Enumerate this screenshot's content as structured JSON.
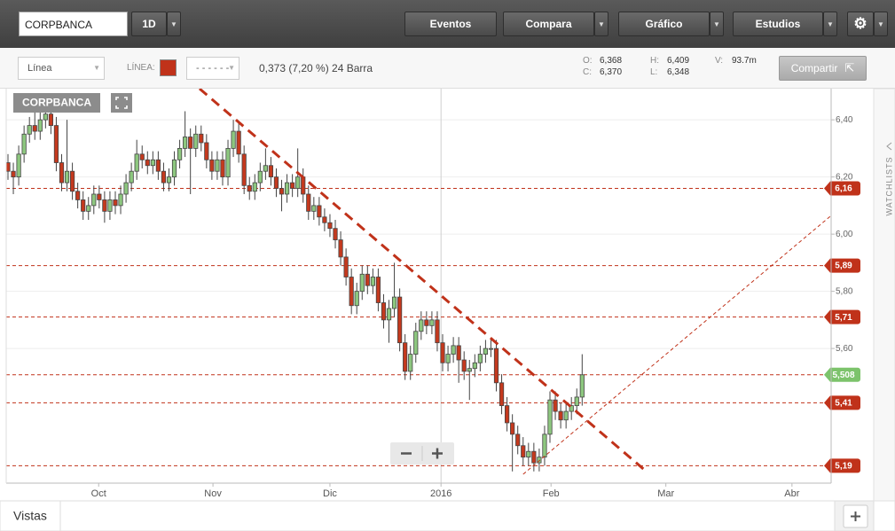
{
  "toolbar": {
    "symbol": "CORPBANCA",
    "interval": "1D",
    "buttons": [
      "Eventos",
      "Compara",
      "Gráfico",
      "Estudios"
    ]
  },
  "subbar": {
    "chart_style": "Línea",
    "line_label": "LÍNEA:",
    "change": "0,373 (7,20 %) 24 Barra",
    "ohlc": [
      [
        "O:",
        "6,368"
      ],
      [
        "C:",
        "6,370"
      ],
      [
        "H:",
        "6,409"
      ],
      [
        "L:",
        "6,348"
      ],
      [
        "V:",
        "93.7m"
      ]
    ],
    "share": "Compartir"
  },
  "side": {
    "watchlists": "WATCHLISTS"
  },
  "footer": {
    "views": "Vistas"
  },
  "chart_data": {
    "type": "candlestick",
    "title": "CORPBANCA",
    "categories": [
      null,
      null,
      null,
      null,
      null,
      null,
      null,
      null,
      null,
      null,
      null,
      null,
      null,
      null,
      null,
      null,
      null,
      null,
      null,
      null,
      null,
      null,
      null,
      null,
      null,
      null,
      null,
      null,
      null,
      null,
      null,
      null,
      null,
      null,
      null,
      null,
      null,
      null,
      null,
      null,
      null,
      null,
      null,
      null,
      null,
      null,
      null,
      null,
      null,
      null,
      null,
      null,
      null,
      null,
      null,
      null,
      null,
      null,
      null,
      null,
      null,
      null,
      null,
      null,
      null,
      null,
      null,
      null,
      null,
      null,
      null,
      null,
      null,
      null,
      null,
      null,
      null,
      null,
      null,
      null,
      null,
      null,
      null,
      null,
      null,
      null,
      null,
      null,
      null,
      null,
      null,
      null,
      null,
      null,
      null,
      null,
      null,
      null,
      null,
      null,
      null,
      null,
      null,
      null,
      null,
      null,
      null,
      null
    ],
    "open": [
      6.25,
      6.22,
      6.2,
      6.28,
      6.35,
      6.38,
      6.36,
      6.4,
      6.42,
      6.38,
      6.25,
      6.18,
      6.22,
      6.15,
      6.12,
      6.08,
      6.1,
      6.14,
      6.12,
      6.08,
      6.12,
      6.1,
      6.14,
      6.18,
      6.22,
      6.28,
      6.26,
      6.24,
      6.26,
      6.22,
      6.18,
      6.2,
      6.26,
      6.3,
      6.34,
      6.3,
      6.35,
      6.32,
      6.26,
      6.22,
      6.26,
      6.2,
      6.3,
      6.36,
      6.28,
      6.17,
      6.15,
      6.18,
      6.22,
      6.24,
      6.2,
      6.16,
      6.14,
      6.18,
      6.16,
      6.2,
      6.14,
      6.08,
      6.1,
      6.06,
      6.04,
      6.02,
      5.98,
      5.92,
      5.85,
      5.75,
      5.8,
      5.86,
      5.82,
      5.85,
      5.76,
      5.7,
      5.74,
      5.78,
      5.62,
      5.52,
      5.58,
      5.66,
      5.7,
      5.68,
      5.7,
      5.62,
      5.55,
      5.58,
      5.61,
      5.56,
      5.52,
      5.53,
      5.55,
      5.58,
      5.6,
      5.6,
      5.48,
      5.4,
      5.34,
      5.3,
      5.26,
      5.22,
      5.24,
      5.2,
      5.22,
      5.3,
      5.42,
      5.38,
      5.35,
      5.38,
      5.4,
      5.43
    ],
    "high": [
      6.28,
      6.25,
      6.31,
      6.38,
      6.41,
      6.43,
      6.44,
      6.46,
      6.45,
      6.41,
      6.28,
      6.4,
      6.25,
      6.18,
      6.15,
      6.13,
      6.17,
      6.17,
      6.15,
      6.15,
      6.15,
      6.17,
      6.21,
      6.25,
      6.33,
      6.31,
      6.29,
      6.29,
      6.29,
      6.25,
      6.23,
      6.29,
      6.33,
      6.43,
      6.37,
      6.38,
      6.38,
      6.35,
      6.29,
      6.29,
      6.29,
      6.33,
      6.4,
      6.39,
      6.31,
      6.2,
      6.21,
      6.25,
      6.3,
      6.27,
      6.23,
      6.19,
      6.21,
      6.21,
      6.3,
      6.23,
      6.17,
      6.13,
      6.13,
      6.09,
      6.07,
      6.05,
      6.01,
      5.95,
      5.88,
      5.83,
      5.89,
      5.89,
      5.88,
      5.88,
      5.79,
      5.77,
      5.9,
      5.81,
      5.65,
      5.61,
      5.69,
      5.73,
      5.73,
      5.73,
      5.73,
      5.65,
      5.61,
      5.64,
      5.64,
      5.59,
      5.56,
      5.58,
      5.61,
      5.63,
      5.63,
      5.63,
      5.51,
      5.43,
      5.37,
      5.33,
      5.29,
      5.27,
      5.27,
      5.25,
      5.33,
      5.45,
      5.45,
      5.41,
      5.41,
      5.43,
      5.46,
      5.58
    ],
    "low": [
      6.19,
      6.14,
      6.17,
      6.25,
      6.32,
      6.33,
      6.33,
      6.37,
      6.35,
      6.22,
      6.15,
      6.15,
      6.12,
      6.09,
      6.05,
      6.05,
      6.07,
      6.09,
      6.04,
      6.05,
      6.07,
      6.07,
      6.11,
      6.15,
      6.19,
      6.23,
      6.21,
      6.21,
      6.19,
      6.15,
      6.15,
      6.17,
      6.23,
      6.27,
      6.14,
      6.27,
      6.29,
      6.23,
      6.19,
      6.19,
      6.17,
      6.17,
      6.27,
      6.25,
      6.14,
      6.12,
      6.12,
      6.15,
      6.19,
      6.17,
      6.13,
      6.08,
      6.11,
      6.13,
      6.13,
      6.11,
      6.05,
      6.05,
      6.03,
      6.01,
      5.99,
      5.95,
      5.89,
      5.82,
      5.72,
      5.72,
      5.77,
      5.79,
      5.79,
      5.73,
      5.67,
      5.62,
      5.71,
      5.59,
      5.49,
      5.49,
      5.55,
      5.63,
      5.65,
      5.65,
      5.59,
      5.52,
      5.52,
      5.55,
      5.48,
      5.49,
      5.42,
      5.5,
      5.52,
      5.55,
      5.57,
      5.45,
      5.37,
      5.31,
      5.17,
      5.23,
      5.19,
      5.19,
      5.17,
      5.17,
      5.19,
      5.27,
      5.35,
      5.32,
      5.32,
      5.35,
      5.37,
      5.4
    ],
    "close": [
      6.22,
      6.2,
      6.28,
      6.35,
      6.38,
      6.36,
      6.4,
      6.42,
      6.38,
      6.25,
      6.18,
      6.22,
      6.15,
      6.12,
      6.08,
      6.1,
      6.14,
      6.12,
      6.08,
      6.12,
      6.1,
      6.14,
      6.18,
      6.22,
      6.28,
      6.26,
      6.24,
      6.26,
      6.22,
      6.18,
      6.2,
      6.26,
      6.3,
      6.34,
      6.3,
      6.35,
      6.32,
      6.26,
      6.22,
      6.26,
      6.2,
      6.3,
      6.36,
      6.28,
      6.17,
      6.15,
      6.18,
      6.22,
      6.24,
      6.2,
      6.16,
      6.14,
      6.18,
      6.16,
      6.2,
      6.14,
      6.08,
      6.1,
      6.06,
      6.04,
      6.02,
      5.98,
      5.92,
      5.85,
      5.75,
      5.8,
      5.86,
      5.82,
      5.85,
      5.76,
      5.7,
      5.74,
      5.78,
      5.62,
      5.52,
      5.58,
      5.66,
      5.7,
      5.68,
      5.7,
      5.62,
      5.55,
      5.58,
      5.61,
      5.56,
      5.52,
      5.53,
      5.55,
      5.58,
      5.6,
      5.6,
      5.48,
      5.4,
      5.34,
      5.3,
      5.26,
      5.22,
      5.24,
      5.2,
      5.22,
      5.3,
      5.42,
      5.38,
      5.35,
      5.38,
      5.4,
      5.43,
      5.508
    ],
    "up_color": "#8dc77f",
    "down_color": "#c4391e",
    "xlim": [
      -0.33,
      153.4
    ],
    "xticks": [
      {
        "value": 16.9,
        "label": "Oct"
      },
      {
        "value": 38.2,
        "label": "Nov"
      },
      {
        "value": 60,
        "label": "Dic"
      },
      {
        "value": 80.7,
        "label": "2016",
        "gridline": true
      },
      {
        "value": 101.2,
        "label": "Feb"
      },
      {
        "value": 122.6,
        "label": "Mar"
      },
      {
        "value": 146.1,
        "label": "Abr"
      }
    ],
    "ylim": [
      5.129,
      6.509
    ],
    "yticks": [
      {
        "value": 5.6,
        "label": "5,60"
      },
      {
        "value": 5.8,
        "label": "5,80"
      },
      {
        "value": 6.0,
        "label": "6,00"
      },
      {
        "value": 6.2,
        "label": "6,20"
      },
      {
        "value": 6.4,
        "label": "6,40"
      }
    ],
    "grid": true,
    "level_color": "#c0321a",
    "levels": [
      {
        "value": 6.16,
        "label": "6,16",
        "tag_color": "#c0321a"
      },
      {
        "value": 5.89,
        "label": "5,89",
        "tag_color": "#c0321a"
      },
      {
        "value": 5.71,
        "label": "5,71",
        "tag_color": "#c0321a"
      },
      {
        "value": 5.508,
        "label": "5,508",
        "tag_color": "#7cc36b"
      },
      {
        "value": 5.41,
        "label": "5,41",
        "tag_color": "#c0321a"
      },
      {
        "value": 5.19,
        "label": "5,19",
        "tag_color": "#c0321a"
      }
    ],
    "trendlines": [
      {
        "start": [
          35.7,
          6.509
        ],
        "end": [
          119.2,
          5.166
        ],
        "width": 3
      },
      {
        "start": [
          96,
          5.16
        ],
        "end": [
          153.4,
          6.065
        ],
        "width": 1
      }
    ]
  }
}
